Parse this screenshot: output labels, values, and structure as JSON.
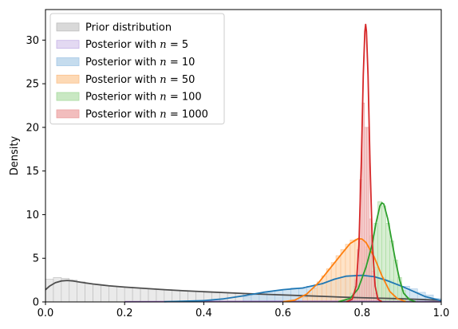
{
  "chart_data": {
    "type": "histogram-density",
    "title": "",
    "xlabel": "",
    "ylabel": "Density",
    "xlim": [
      0.0,
      1.0
    ],
    "ylim": [
      0,
      33.5
    ],
    "x_ticks": [
      "0.0",
      "0.2",
      "0.4",
      "0.6",
      "0.8",
      "1.0"
    ],
    "y_ticks": [
      "0",
      "5",
      "10",
      "15",
      "20",
      "25",
      "30"
    ],
    "grid": false,
    "legend_position": "top-left",
    "series": [
      {
        "name": "Prior distribution",
        "label_prefix": "Prior distribution",
        "label_n": "",
        "fill": "#d9d9d9",
        "edge": "#bdbdbd",
        "line": "#4d4d4d",
        "bin_width": 0.02,
        "bins": [
          [
            0.0,
            2.6
          ],
          [
            0.02,
            2.8
          ],
          [
            0.04,
            2.7
          ],
          [
            0.06,
            2.5
          ],
          [
            0.08,
            2.3
          ],
          [
            0.1,
            2.1
          ],
          [
            0.12,
            2.0
          ],
          [
            0.14,
            1.9
          ],
          [
            0.16,
            1.8
          ],
          [
            0.18,
            1.75
          ],
          [
            0.2,
            1.7
          ],
          [
            0.22,
            1.6
          ],
          [
            0.24,
            1.55
          ],
          [
            0.26,
            1.5
          ],
          [
            0.28,
            1.45
          ],
          [
            0.3,
            1.4
          ],
          [
            0.32,
            1.35
          ],
          [
            0.34,
            1.3
          ],
          [
            0.36,
            1.25
          ],
          [
            0.38,
            1.2
          ],
          [
            0.4,
            1.15
          ],
          [
            0.42,
            1.1
          ],
          [
            0.44,
            1.05
          ],
          [
            0.46,
            1.0
          ],
          [
            0.48,
            1.0
          ],
          [
            0.5,
            0.95
          ],
          [
            0.52,
            0.9
          ],
          [
            0.54,
            0.85
          ],
          [
            0.56,
            0.85
          ],
          [
            0.58,
            0.8
          ],
          [
            0.6,
            0.75
          ],
          [
            0.62,
            0.75
          ],
          [
            0.64,
            0.7
          ],
          [
            0.66,
            0.7
          ],
          [
            0.68,
            0.65
          ],
          [
            0.7,
            0.6
          ],
          [
            0.72,
            0.6
          ],
          [
            0.74,
            0.55
          ],
          [
            0.76,
            0.5
          ],
          [
            0.78,
            0.5
          ],
          [
            0.8,
            0.45
          ],
          [
            0.82,
            0.45
          ],
          [
            0.84,
            0.4
          ],
          [
            0.86,
            0.4
          ],
          [
            0.88,
            0.35
          ],
          [
            0.9,
            0.35
          ],
          [
            0.92,
            0.3
          ],
          [
            0.94,
            0.3
          ],
          [
            0.96,
            0.25
          ],
          [
            0.98,
            0.2
          ]
        ],
        "kde": [
          [
            0.0,
            1.4
          ],
          [
            0.01,
            1.8
          ],
          [
            0.025,
            2.2
          ],
          [
            0.04,
            2.4
          ],
          [
            0.055,
            2.45
          ],
          [
            0.07,
            2.4
          ],
          [
            0.09,
            2.25
          ],
          [
            0.12,
            2.05
          ],
          [
            0.16,
            1.85
          ],
          [
            0.2,
            1.7
          ],
          [
            0.25,
            1.55
          ],
          [
            0.3,
            1.4
          ],
          [
            0.35,
            1.28
          ],
          [
            0.4,
            1.17
          ],
          [
            0.45,
            1.07
          ],
          [
            0.5,
            0.97
          ],
          [
            0.55,
            0.88
          ],
          [
            0.6,
            0.8
          ],
          [
            0.65,
            0.72
          ],
          [
            0.7,
            0.64
          ],
          [
            0.75,
            0.55
          ],
          [
            0.8,
            0.48
          ],
          [
            0.85,
            0.42
          ],
          [
            0.9,
            0.36
          ],
          [
            0.95,
            0.28
          ],
          [
            1.0,
            0.18
          ]
        ]
      },
      {
        "name": "Posterior with n = 5",
        "label_prefix": "Posterior with",
        "label_n": "5",
        "fill": "#e3d9f2",
        "edge": "#c6b3e6",
        "line": "#9467bd",
        "bin_width": 0.02,
        "bins": [],
        "kde": [
          [
            0.2,
            0.02
          ],
          [
            0.4,
            0.04
          ],
          [
            0.6,
            0.05
          ],
          [
            0.75,
            0.05
          ],
          [
            0.85,
            0.04
          ],
          [
            0.95,
            0.03
          ],
          [
            1.0,
            0.02
          ]
        ]
      },
      {
        "name": "Posterior with n = 10",
        "label_prefix": "Posterior with",
        "label_n": "10",
        "fill": "#c5dcee",
        "edge": "#a6c8e6",
        "line": "#1f77b4",
        "bin_width": 0.02,
        "bins": [
          [
            0.5,
            0.6
          ],
          [
            0.52,
            0.8
          ],
          [
            0.54,
            1.0
          ],
          [
            0.56,
            1.1
          ],
          [
            0.58,
            1.3
          ],
          [
            0.6,
            1.4
          ],
          [
            0.62,
            1.6
          ],
          [
            0.64,
            1.5
          ],
          [
            0.66,
            1.8
          ],
          [
            0.68,
            2.0
          ],
          [
            0.7,
            2.2
          ],
          [
            0.72,
            2.5
          ],
          [
            0.74,
            2.8
          ],
          [
            0.76,
            3.0
          ],
          [
            0.78,
            3.1
          ],
          [
            0.8,
            3.0
          ],
          [
            0.82,
            3.0
          ],
          [
            0.84,
            2.8
          ],
          [
            0.86,
            2.5
          ],
          [
            0.88,
            2.1
          ],
          [
            0.9,
            1.8
          ],
          [
            0.92,
            1.5
          ],
          [
            0.94,
            1.1
          ],
          [
            0.96,
            0.8
          ],
          [
            0.98,
            0.4
          ]
        ],
        "kde": [
          [
            0.3,
            0.02
          ],
          [
            0.4,
            0.15
          ],
          [
            0.45,
            0.35
          ],
          [
            0.5,
            0.7
          ],
          [
            0.55,
            1.1
          ],
          [
            0.6,
            1.4
          ],
          [
            0.65,
            1.6
          ],
          [
            0.7,
            2.1
          ],
          [
            0.73,
            2.6
          ],
          [
            0.76,
            2.95
          ],
          [
            0.8,
            3.05
          ],
          [
            0.83,
            2.9
          ],
          [
            0.86,
            2.5
          ],
          [
            0.9,
            1.8
          ],
          [
            0.93,
            1.2
          ],
          [
            0.96,
            0.6
          ],
          [
            1.0,
            0.15
          ]
        ]
      },
      {
        "name": "Posterior with n = 50",
        "label_prefix": "Posterior with",
        "label_n": "50",
        "fill": "#fdd9b5",
        "edge": "#fbc08c",
        "line": "#ff7f0e",
        "bin_width": 0.012,
        "bins": [
          [
            0.65,
            0.5
          ],
          [
            0.662,
            1.0
          ],
          [
            0.674,
            1.5
          ],
          [
            0.686,
            2.3
          ],
          [
            0.698,
            3.0
          ],
          [
            0.71,
            3.8
          ],
          [
            0.722,
            4.5
          ],
          [
            0.734,
            5.3
          ],
          [
            0.746,
            6.0
          ],
          [
            0.758,
            6.6
          ],
          [
            0.77,
            7.1
          ],
          [
            0.782,
            7.2
          ],
          [
            0.794,
            7.0
          ],
          [
            0.806,
            6.3
          ],
          [
            0.818,
            5.3
          ],
          [
            0.83,
            4.0
          ],
          [
            0.842,
            2.8
          ],
          [
            0.854,
            1.6
          ],
          [
            0.866,
            0.8
          ],
          [
            0.878,
            0.3
          ]
        ],
        "kde": [
          [
            0.6,
            0.02
          ],
          [
            0.63,
            0.2
          ],
          [
            0.66,
            0.9
          ],
          [
            0.69,
            2.2
          ],
          [
            0.72,
            3.9
          ],
          [
            0.75,
            5.6
          ],
          [
            0.77,
            6.7
          ],
          [
            0.79,
            7.25
          ],
          [
            0.8,
            7.2
          ],
          [
            0.81,
            6.8
          ],
          [
            0.83,
            5.2
          ],
          [
            0.85,
            3.0
          ],
          [
            0.87,
            1.2
          ],
          [
            0.89,
            0.35
          ],
          [
            0.91,
            0.05
          ]
        ]
      },
      {
        "name": "Posterior with n = 100",
        "label_prefix": "Posterior with",
        "label_n": "100",
        "fill": "#c9e8c3",
        "edge": "#a9dba0",
        "line": "#2ca02c",
        "bin_width": 0.01,
        "bins": [
          [
            0.76,
            0.5
          ],
          [
            0.77,
            1.0
          ],
          [
            0.78,
            1.8
          ],
          [
            0.79,
            2.9
          ],
          [
            0.8,
            4.4
          ],
          [
            0.81,
            6.0
          ],
          [
            0.82,
            7.6
          ],
          [
            0.83,
            9.0
          ],
          [
            0.84,
            11.5
          ],
          [
            0.85,
            11.0
          ],
          [
            0.86,
            9.0
          ],
          [
            0.87,
            7.0
          ],
          [
            0.88,
            4.8
          ],
          [
            0.89,
            2.8
          ],
          [
            0.9,
            1.3
          ],
          [
            0.91,
            0.5
          ]
        ],
        "kde": [
          [
            0.74,
            0.02
          ],
          [
            0.77,
            0.4
          ],
          [
            0.79,
            1.5
          ],
          [
            0.81,
            4.0
          ],
          [
            0.825,
            6.5
          ],
          [
            0.835,
            9.0
          ],
          [
            0.845,
            11.0
          ],
          [
            0.85,
            11.35
          ],
          [
            0.855,
            11.2
          ],
          [
            0.865,
            9.5
          ],
          [
            0.875,
            7.0
          ],
          [
            0.885,
            4.6
          ],
          [
            0.895,
            2.5
          ],
          [
            0.905,
            1.0
          ],
          [
            0.92,
            0.25
          ],
          [
            0.935,
            0.03
          ]
        ]
      },
      {
        "name": "Posterior with n = 1000",
        "label_prefix": "Posterior with",
        "label_n": "1000",
        "fill": "#f2bdbd",
        "edge": "#eba0a0",
        "line": "#d62728",
        "bin_width": 0.006,
        "bins": [
          [
            0.77,
            0.4
          ],
          [
            0.776,
            1.0
          ],
          [
            0.782,
            2.5
          ],
          [
            0.788,
            6.0
          ],
          [
            0.794,
            14.0
          ],
          [
            0.8,
            22.8
          ],
          [
            0.806,
            20.0
          ],
          [
            0.812,
            20.0
          ],
          [
            0.818,
            9.5
          ],
          [
            0.824,
            3.5
          ],
          [
            0.83,
            1.0
          ],
          [
            0.836,
            0.3
          ]
        ],
        "kde": [
          [
            0.76,
            0.02
          ],
          [
            0.775,
            0.3
          ],
          [
            0.785,
            1.8
          ],
          [
            0.792,
            6.5
          ],
          [
            0.798,
            16.0
          ],
          [
            0.803,
            26.0
          ],
          [
            0.807,
            31.0
          ],
          [
            0.809,
            31.8
          ],
          [
            0.811,
            31.0
          ],
          [
            0.815,
            26.0
          ],
          [
            0.82,
            16.0
          ],
          [
            0.826,
            6.5
          ],
          [
            0.833,
            1.8
          ],
          [
            0.84,
            0.3
          ],
          [
            0.85,
            0.03
          ]
        ]
      }
    ]
  }
}
